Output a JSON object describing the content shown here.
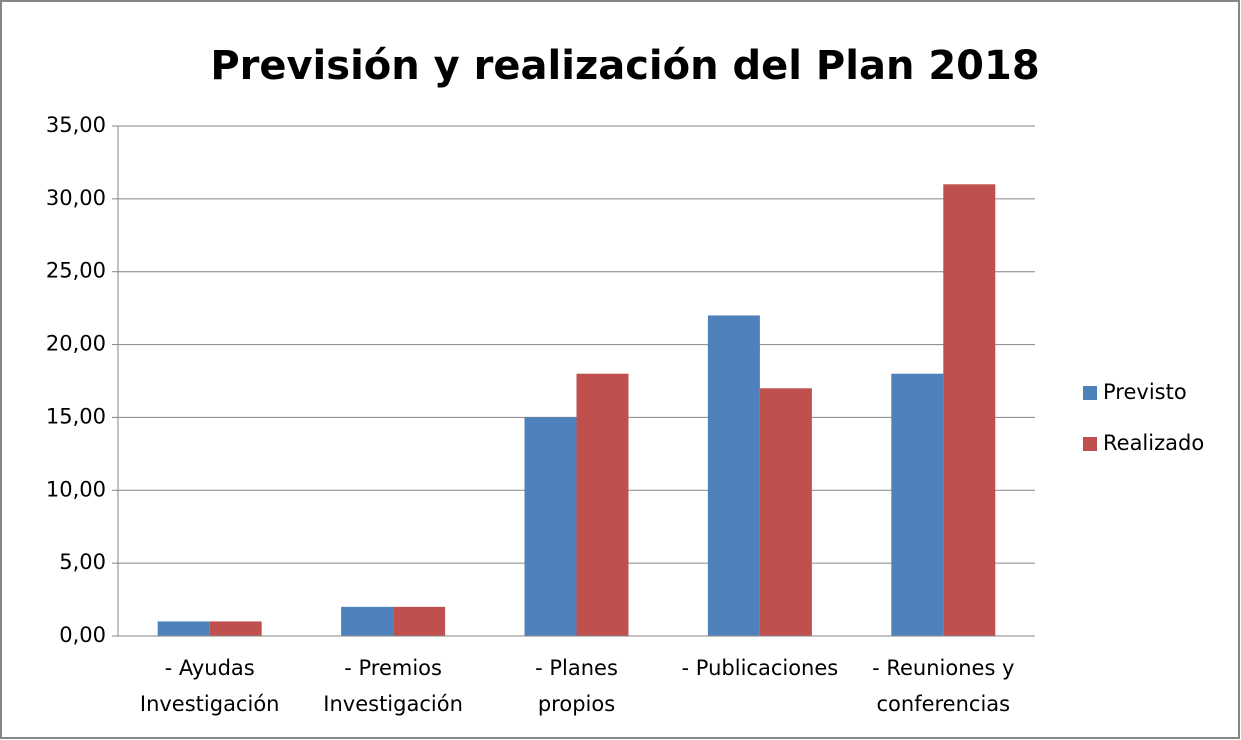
{
  "chart_data": {
    "type": "bar",
    "title": "Previsión y realización del Plan 2018",
    "categories": [
      "- Ayudas\nInvestigación",
      "- Premios\nInvestigación",
      "- Planes\npropios",
      "- Publicaciones",
      "- Reuniones y\nconferencias"
    ],
    "series": [
      {
        "name": "Previsto",
        "color": "#4f81bd",
        "values": [
          1,
          2,
          15,
          22,
          18
        ]
      },
      {
        "name": "Realizado",
        "color": "#c0504d",
        "values": [
          1,
          2,
          18,
          17,
          31
        ]
      }
    ],
    "ylim": [
      0,
      35
    ],
    "yticks": [
      {
        "value": 0,
        "label": "0,00"
      },
      {
        "value": 5,
        "label": "5,00"
      },
      {
        "value": 10,
        "label": "10,00"
      },
      {
        "value": 15,
        "label": "15,00"
      },
      {
        "value": 20,
        "label": "20,00"
      },
      {
        "value": 25,
        "label": "25,00"
      },
      {
        "value": 30,
        "label": "30,00"
      },
      {
        "value": 35,
        "label": "35,00"
      }
    ],
    "grid": true,
    "legend": "right"
  }
}
